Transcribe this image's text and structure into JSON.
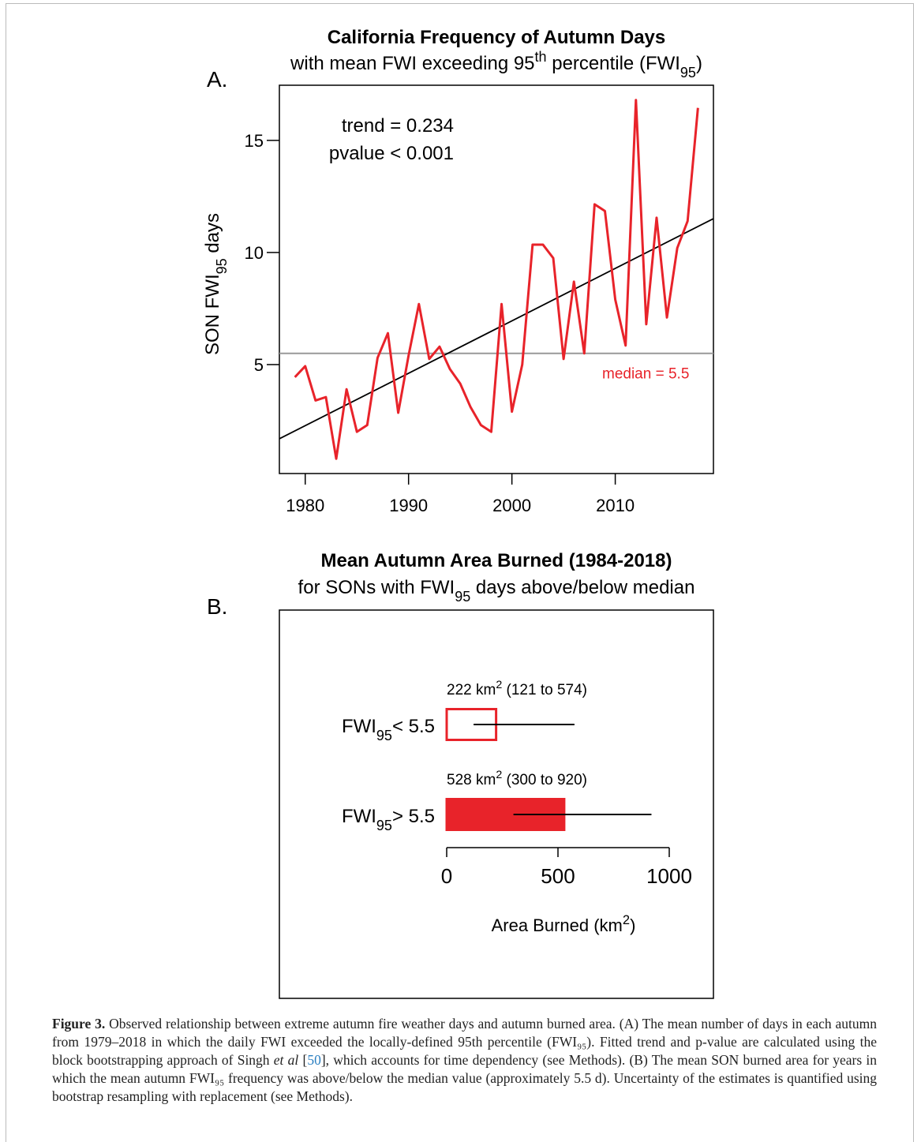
{
  "chart_data": [
    {
      "type": "line",
      "panel": "A.",
      "title": "California Frequency of Autumn Days",
      "subtitle": [
        {
          "text": "with mean FWI exceeding 95"
        },
        {
          "text": "th",
          "script": "super"
        },
        {
          "text": " percentile (FWI"
        },
        {
          "text": "95",
          "script": "sub"
        },
        {
          "text": ")"
        }
      ],
      "y_label": [
        {
          "text": "SON FWI"
        },
        {
          "text": "95",
          "script": "sub"
        },
        {
          "text": " days"
        }
      ],
      "x": [
        1979,
        1980,
        1981,
        1982,
        1983,
        1984,
        1985,
        1986,
        1987,
        1988,
        1989,
        1990,
        1991,
        1992,
        1993,
        1994,
        1995,
        1996,
        1997,
        1998,
        1999,
        2000,
        2001,
        2002,
        2003,
        2004,
        2005,
        2006,
        2007,
        2008,
        2009,
        2010,
        2011,
        2012,
        2013,
        2014,
        2015,
        2016,
        2017,
        2018
      ],
      "series": [
        {
          "color": "#e8232a",
          "values": [
            4.44,
            4.93,
            3.4,
            3.55,
            0.8,
            3.9,
            2.0,
            2.3,
            5.3,
            6.4,
            2.85,
            5.4,
            7.7,
            5.25,
            5.8,
            4.8,
            4.15,
            3.1,
            2.3,
            2.0,
            7.7,
            2.9,
            5.0,
            10.35,
            10.35,
            9.75,
            5.25,
            8.7,
            5.5,
            12.15,
            11.85,
            7.9,
            5.85,
            16.8,
            6.8,
            11.55,
            7.1,
            10.2,
            11.4,
            16.45
          ]
        }
      ],
      "xlim": [
        1977.5,
        2019.5
      ],
      "ylim": [
        0.14,
        17.46
      ],
      "xticks": [
        1980,
        1990,
        2000,
        2010
      ],
      "yticks": [
        5,
        10,
        15
      ],
      "trend_line": {
        "color": "#000000",
        "x": [
          1977.5,
          2019.5
        ],
        "y": [
          1.69,
          11.51
        ]
      },
      "median_line": {
        "value": 5.5,
        "color": "#999999",
        "label": "median = 5.5",
        "label_color": "#e8232a"
      },
      "annotations": [
        "trend = 0.234",
        "pvalue < 0.001"
      ]
    },
    {
      "type": "bar",
      "orientation": "horizontal",
      "panel": "B.",
      "title": "Mean Autumn Area Burned (1984-2018)",
      "subtitle": [
        {
          "text": "for SONs with FWI"
        },
        {
          "text": "95",
          "script": "sub"
        },
        {
          "text": " days above/below median"
        }
      ],
      "categories": [
        [
          {
            "text": "FWI"
          },
          {
            "text": "95",
            "script": "sub"
          },
          {
            "text": "< 5.5"
          }
        ],
        [
          {
            "text": "FWI"
          },
          {
            "text": "95",
            "script": "sub"
          },
          {
            "text": "> 5.5"
          }
        ]
      ],
      "values": [
        222,
        528
      ],
      "error_low": [
        121,
        300
      ],
      "error_high": [
        574,
        920
      ],
      "value_labels": [
        [
          {
            "text": "222 km"
          },
          {
            "text": "2",
            "script": "super"
          },
          {
            "text": "  (121 to 574)"
          }
        ],
        [
          {
            "text": "528 km"
          },
          {
            "text": "2",
            "script": "super"
          },
          {
            "text": "  (300 to 920)"
          }
        ]
      ],
      "color": "#e8232a",
      "fills": [
        "none",
        "#e8232a"
      ],
      "xlim": [
        0,
        1000
      ],
      "xticks": [
        0,
        500,
        1000
      ],
      "x_label": [
        {
          "text": "Area Burned (km"
        },
        {
          "text": "2",
          "script": "super"
        },
        {
          "text": ")"
        }
      ]
    }
  ],
  "caption": [
    {
      "text": "Figure 3.",
      "style": "bold"
    },
    {
      "text": " Observed relationship between extreme autumn fire weather days and autumn burned area. (A) The mean number of days in each autumn from 1979–2018 in which the daily FWI exceeded the locally-defined 95th percentile (FWI₉₅). Fitted trend and p-value are calculated using the block bootstrapping approach of Singh "
    },
    {
      "text": "et al",
      "style": "italic"
    },
    {
      "text": " ["
    },
    {
      "text": "50",
      "style": "link"
    },
    {
      "text": "], which accounts for time dependency (see Methods). (B) The mean SON burned area for years in which the mean autumn FWI₉₅ frequency was above/below the median value (approximately 5.5 d). Uncertainty of the estimates is quantified using bootstrap resampling with replacement (see Methods)."
    }
  ]
}
